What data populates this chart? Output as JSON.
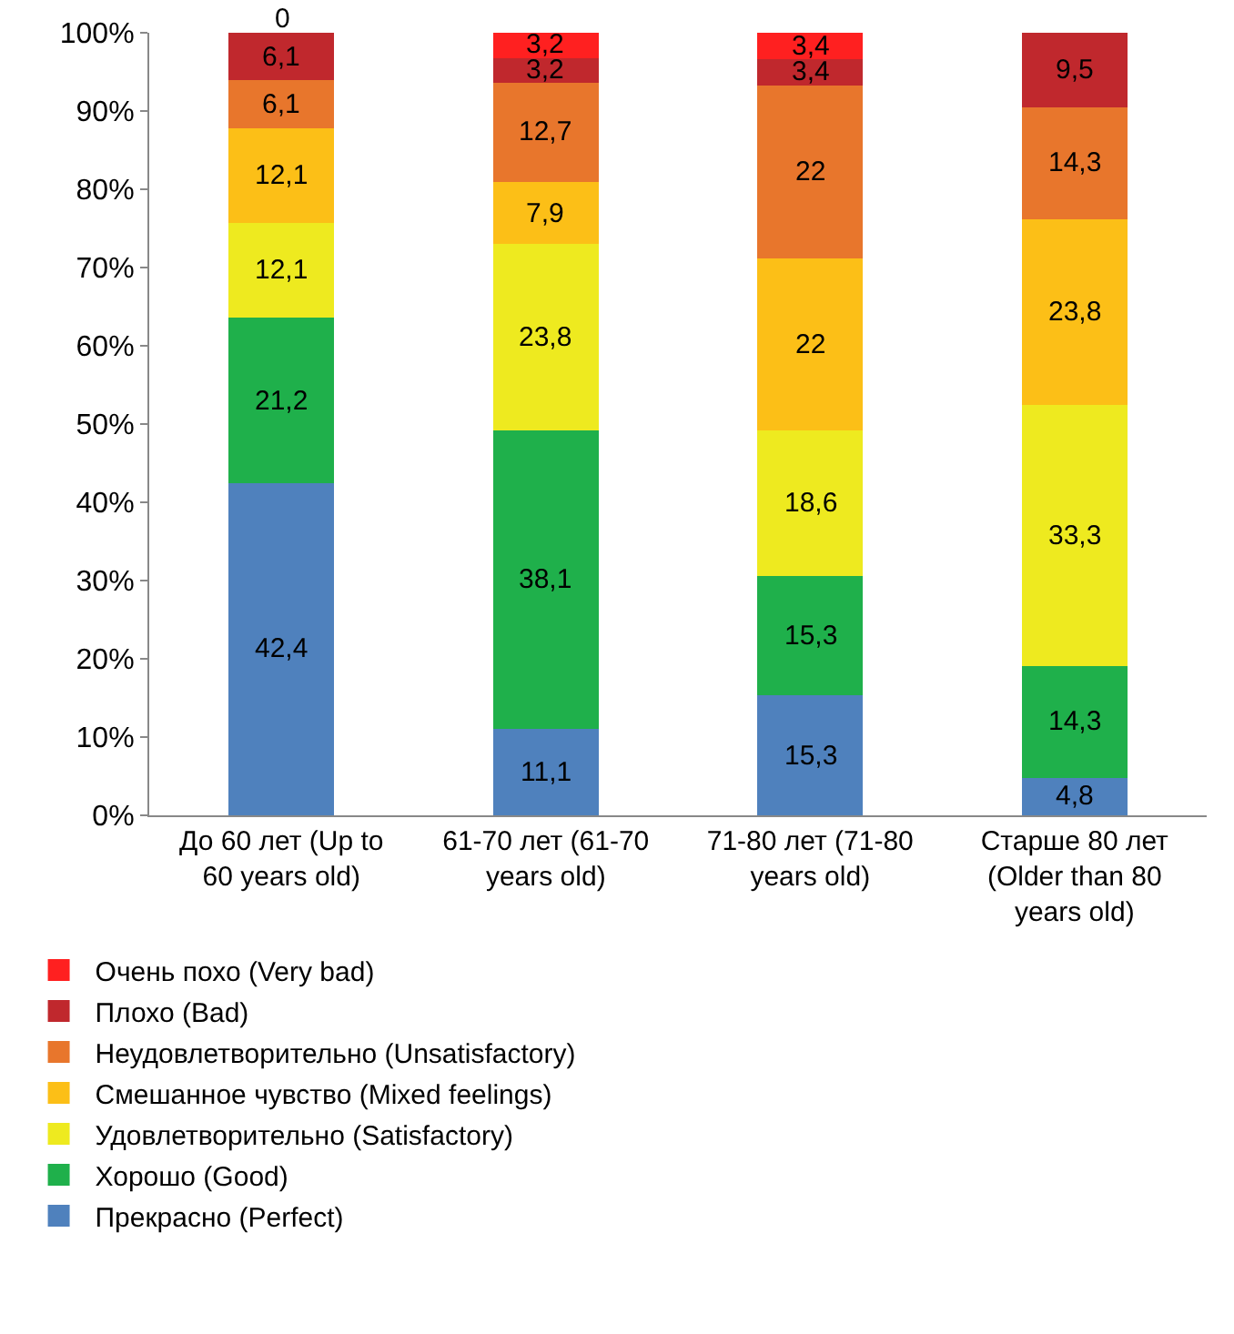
{
  "chart_data": {
    "type": "bar",
    "stacked": true,
    "categories": [
      "До 60 лет (Up to 60 years old)",
      "61-70 лет (61-70 years old)",
      "71-80 лет (71-80 years old)",
      "Старше 80 лет (Older than 80 years old)"
    ],
    "series": [
      {
        "name": "Прекрасно (Perfect)",
        "color": "#4f81bd",
        "values": [
          42.4,
          11.1,
          15.3,
          4.8
        ],
        "value_labels": [
          "42,4",
          "11,1",
          "15,3",
          "4,8"
        ]
      },
      {
        "name": "Хорошо (Good)",
        "color": "#1fb04b",
        "values": [
          21.2,
          38.1,
          15.3,
          14.3
        ],
        "value_labels": [
          "21,2",
          "38,1",
          "15,3",
          "14,3"
        ]
      },
      {
        "name": "Удовлетворительно (Satisfactory)",
        "color": "#eeea1f",
        "values": [
          12.1,
          23.8,
          18.6,
          33.3
        ],
        "value_labels": [
          "12,1",
          "23,8",
          "18,6",
          "33,3"
        ]
      },
      {
        "name": "Смешанное чувство (Mixed feelings)",
        "color": "#fcbf17",
        "values": [
          12.1,
          7.9,
          22,
          23.8
        ],
        "value_labels": [
          "12,1",
          "7,9",
          "22",
          "23,8"
        ]
      },
      {
        "name": "Неудовлетворительно (Unsatisfactory)",
        "color": "#e8762c",
        "values": [
          6.1,
          12.7,
          22,
          14.3
        ],
        "value_labels": [
          "6,1",
          "12,7",
          "22",
          "14,3"
        ]
      },
      {
        "name": "Плохо (Bad)",
        "color": "#c0282d",
        "values": [
          6.1,
          3.2,
          3.4,
          9.5
        ],
        "value_labels": [
          "6,1",
          "3,2",
          "3,4",
          "9,5"
        ]
      },
      {
        "name": "Очень похо (Very bad)",
        "color": "#ff2020",
        "values": [
          0,
          3.2,
          3.4,
          null
        ],
        "value_labels": [
          "0",
          "3,2",
          "3,4",
          null
        ]
      }
    ],
    "ylim": [
      0,
      100
    ],
    "yticks": [
      {
        "value": 0,
        "label": "0%"
      },
      {
        "value": 10,
        "label": "10%"
      },
      {
        "value": 20,
        "label": "20%"
      },
      {
        "value": 30,
        "label": "30%"
      },
      {
        "value": 40,
        "label": "40%"
      },
      {
        "value": 50,
        "label": "50%"
      },
      {
        "value": 60,
        "label": "60%"
      },
      {
        "value": 70,
        "label": "70%"
      },
      {
        "value": 80,
        "label": "80%"
      },
      {
        "value": 90,
        "label": "90%"
      },
      {
        "value": 100,
        "label": "100%"
      }
    ],
    "legend": "bottom"
  }
}
